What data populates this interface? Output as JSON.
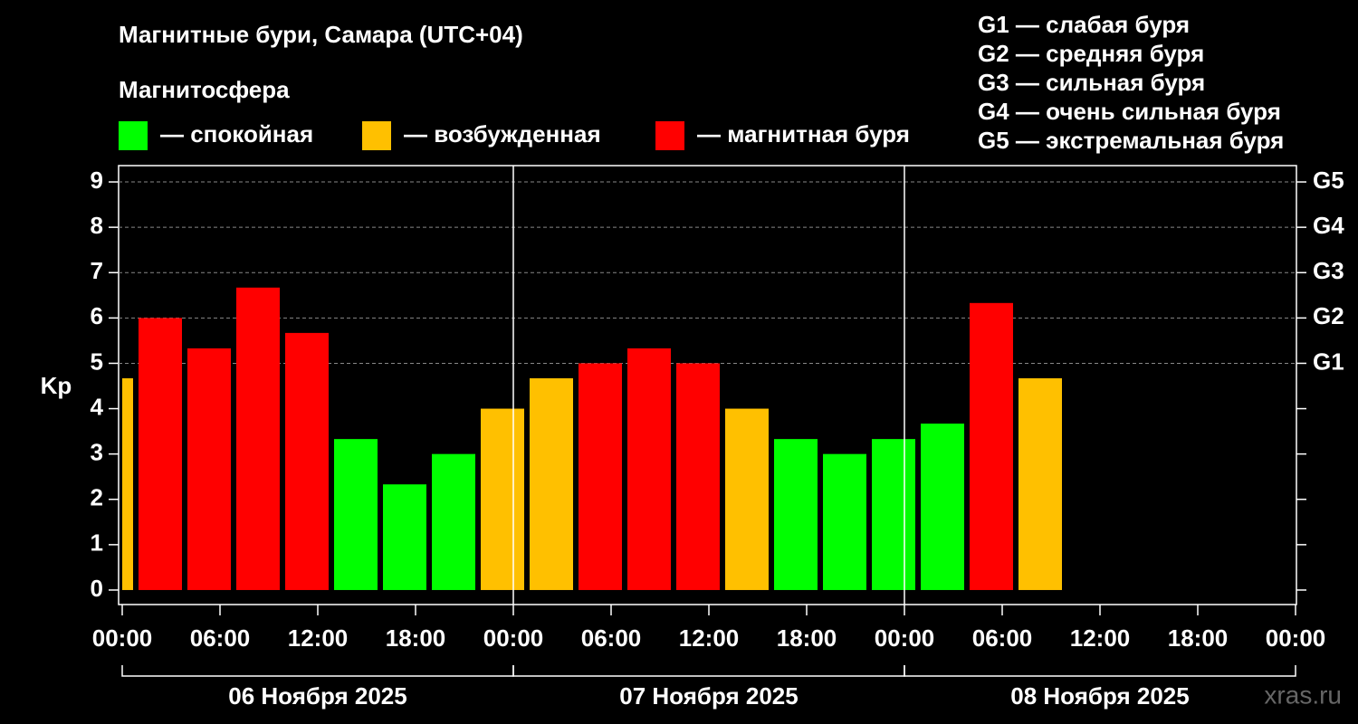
{
  "chart_data": {
    "type": "bar",
    "title": "Магнитные бури, Самара (UTC+04)",
    "subtitle": "Магнитосфера",
    "y_label": "Kp",
    "watermark": "xras.ru",
    "legend": [
      {
        "label": "— спокойная",
        "color": "#00ff00"
      },
      {
        "label": "— возбужденная",
        "color": "#ffc000"
      },
      {
        "label": "— магнитная буря",
        "color": "#ff0000"
      }
    ],
    "scale_legend": [
      "G1 — слабая буря",
      "G2 — средняя буря",
      "G3 — сильная буря",
      "G4 — очень сильная буря",
      "G5 — экстремальная буря"
    ],
    "bar_hours": 3,
    "x": [
      -2,
      1,
      4,
      7,
      10,
      13,
      16,
      19,
      22,
      25,
      28,
      31,
      34,
      37,
      40,
      43,
      46,
      49,
      52,
      55
    ],
    "values": [
      4.67,
      6,
      5.33,
      6.67,
      5.67,
      3.33,
      2.33,
      3,
      4,
      4.67,
      5,
      5.33,
      5,
      4,
      3.33,
      3,
      3.33,
      3.67,
      6.33,
      4.67
    ],
    "colors": [
      "#ffc000",
      "#ff0000",
      "#ff0000",
      "#ff0000",
      "#ff0000",
      "#00ff00",
      "#00ff00",
      "#00ff00",
      "#ffc000",
      "#ffc000",
      "#ff0000",
      "#ff0000",
      "#ff0000",
      "#ffc000",
      "#00ff00",
      "#00ff00",
      "#00ff00",
      "#00ff00",
      "#ff0000",
      "#ffc000"
    ],
    "xlim": [
      0,
      72
    ],
    "xticks": [
      {
        "value": 0,
        "label": "00:00"
      },
      {
        "value": 6,
        "label": "06:00"
      },
      {
        "value": 12,
        "label": "12:00"
      },
      {
        "value": 18,
        "label": "18:00"
      },
      {
        "value": 24,
        "label": "00:00"
      },
      {
        "value": 30,
        "label": "06:00"
      },
      {
        "value": 36,
        "label": "12:00"
      },
      {
        "value": 42,
        "label": "18:00"
      },
      {
        "value": 48,
        "label": "00:00"
      },
      {
        "value": 54,
        "label": "06:00"
      },
      {
        "value": 60,
        "label": "12:00"
      },
      {
        "value": 66,
        "label": "18:00"
      },
      {
        "value": 72,
        "label": "00:00"
      }
    ],
    "days": [
      {
        "label": "06 Ноября 2025",
        "start": 0,
        "end": 24
      },
      {
        "label": "07 Ноября 2025",
        "start": 24,
        "end": 48
      },
      {
        "label": "08 Ноября 2025",
        "start": 48,
        "end": 72
      }
    ],
    "ylim": [
      -0.32,
      9.36
    ],
    "yticks": [
      0,
      1,
      2,
      3,
      4,
      5,
      6,
      7,
      8,
      9
    ],
    "y2ticks": [
      {
        "value": 5,
        "label": "G1"
      },
      {
        "value": 6,
        "label": "G2"
      },
      {
        "value": 7,
        "label": "G3"
      },
      {
        "value": 8,
        "label": "G4"
      },
      {
        "value": 9,
        "label": "G5"
      }
    ],
    "grid": true
  }
}
